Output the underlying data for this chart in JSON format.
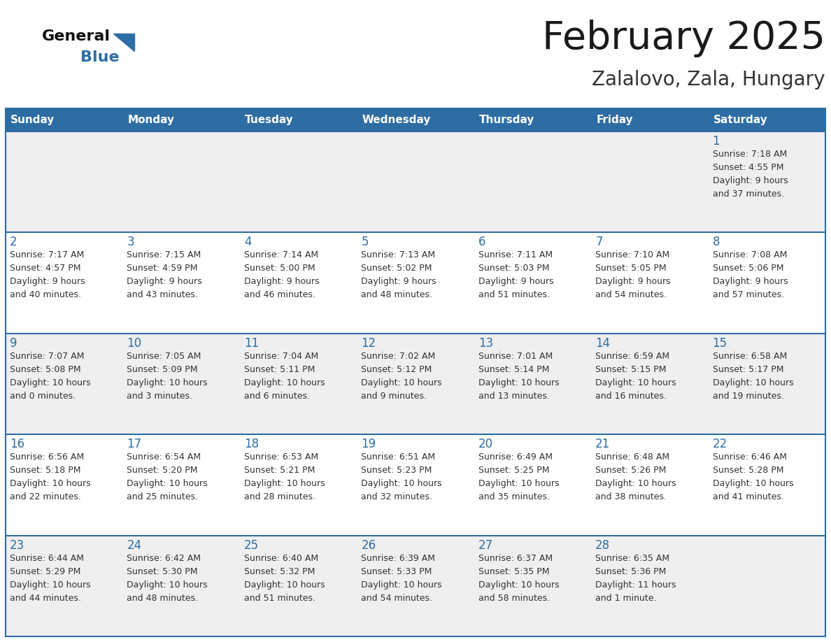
{
  "title": "February 2025",
  "subtitle": "Zalalovo, Zala, Hungary",
  "days_of_week": [
    "Sunday",
    "Monday",
    "Tuesday",
    "Wednesday",
    "Thursday",
    "Friday",
    "Saturday"
  ],
  "header_bg": "#2E6DA4",
  "header_text_color": "#FFFFFF",
  "cell_bg_light": "#EFEFEF",
  "cell_bg_white": "#FFFFFF",
  "cell_border_color": "#2E6DA4",
  "title_color": "#1a1a1a",
  "subtitle_color": "#333333",
  "day_number_color": "#2E6DA4",
  "cell_text_color": "#333333",
  "logo_general_color": "#111111",
  "logo_blue_color": "#2E6DA4",
  "weeks": [
    [
      {
        "day": null,
        "info": null
      },
      {
        "day": null,
        "info": null
      },
      {
        "day": null,
        "info": null
      },
      {
        "day": null,
        "info": null
      },
      {
        "day": null,
        "info": null
      },
      {
        "day": null,
        "info": null
      },
      {
        "day": 1,
        "info": "Sunrise: 7:18 AM\nSunset: 4:55 PM\nDaylight: 9 hours\nand 37 minutes."
      }
    ],
    [
      {
        "day": 2,
        "info": "Sunrise: 7:17 AM\nSunset: 4:57 PM\nDaylight: 9 hours\nand 40 minutes."
      },
      {
        "day": 3,
        "info": "Sunrise: 7:15 AM\nSunset: 4:59 PM\nDaylight: 9 hours\nand 43 minutes."
      },
      {
        "day": 4,
        "info": "Sunrise: 7:14 AM\nSunset: 5:00 PM\nDaylight: 9 hours\nand 46 minutes."
      },
      {
        "day": 5,
        "info": "Sunrise: 7:13 AM\nSunset: 5:02 PM\nDaylight: 9 hours\nand 48 minutes."
      },
      {
        "day": 6,
        "info": "Sunrise: 7:11 AM\nSunset: 5:03 PM\nDaylight: 9 hours\nand 51 minutes."
      },
      {
        "day": 7,
        "info": "Sunrise: 7:10 AM\nSunset: 5:05 PM\nDaylight: 9 hours\nand 54 minutes."
      },
      {
        "day": 8,
        "info": "Sunrise: 7:08 AM\nSunset: 5:06 PM\nDaylight: 9 hours\nand 57 minutes."
      }
    ],
    [
      {
        "day": 9,
        "info": "Sunrise: 7:07 AM\nSunset: 5:08 PM\nDaylight: 10 hours\nand 0 minutes."
      },
      {
        "day": 10,
        "info": "Sunrise: 7:05 AM\nSunset: 5:09 PM\nDaylight: 10 hours\nand 3 minutes."
      },
      {
        "day": 11,
        "info": "Sunrise: 7:04 AM\nSunset: 5:11 PM\nDaylight: 10 hours\nand 6 minutes."
      },
      {
        "day": 12,
        "info": "Sunrise: 7:02 AM\nSunset: 5:12 PM\nDaylight: 10 hours\nand 9 minutes."
      },
      {
        "day": 13,
        "info": "Sunrise: 7:01 AM\nSunset: 5:14 PM\nDaylight: 10 hours\nand 13 minutes."
      },
      {
        "day": 14,
        "info": "Sunrise: 6:59 AM\nSunset: 5:15 PM\nDaylight: 10 hours\nand 16 minutes."
      },
      {
        "day": 15,
        "info": "Sunrise: 6:58 AM\nSunset: 5:17 PM\nDaylight: 10 hours\nand 19 minutes."
      }
    ],
    [
      {
        "day": 16,
        "info": "Sunrise: 6:56 AM\nSunset: 5:18 PM\nDaylight: 10 hours\nand 22 minutes."
      },
      {
        "day": 17,
        "info": "Sunrise: 6:54 AM\nSunset: 5:20 PM\nDaylight: 10 hours\nand 25 minutes."
      },
      {
        "day": 18,
        "info": "Sunrise: 6:53 AM\nSunset: 5:21 PM\nDaylight: 10 hours\nand 28 minutes."
      },
      {
        "day": 19,
        "info": "Sunrise: 6:51 AM\nSunset: 5:23 PM\nDaylight: 10 hours\nand 32 minutes."
      },
      {
        "day": 20,
        "info": "Sunrise: 6:49 AM\nSunset: 5:25 PM\nDaylight: 10 hours\nand 35 minutes."
      },
      {
        "day": 21,
        "info": "Sunrise: 6:48 AM\nSunset: 5:26 PM\nDaylight: 10 hours\nand 38 minutes."
      },
      {
        "day": 22,
        "info": "Sunrise: 6:46 AM\nSunset: 5:28 PM\nDaylight: 10 hours\nand 41 minutes."
      }
    ],
    [
      {
        "day": 23,
        "info": "Sunrise: 6:44 AM\nSunset: 5:29 PM\nDaylight: 10 hours\nand 44 minutes."
      },
      {
        "day": 24,
        "info": "Sunrise: 6:42 AM\nSunset: 5:30 PM\nDaylight: 10 hours\nand 48 minutes."
      },
      {
        "day": 25,
        "info": "Sunrise: 6:40 AM\nSunset: 5:32 PM\nDaylight: 10 hours\nand 51 minutes."
      },
      {
        "day": 26,
        "info": "Sunrise: 6:39 AM\nSunset: 5:33 PM\nDaylight: 10 hours\nand 54 minutes."
      },
      {
        "day": 27,
        "info": "Sunrise: 6:37 AM\nSunset: 5:35 PM\nDaylight: 10 hours\nand 58 minutes."
      },
      {
        "day": 28,
        "info": "Sunrise: 6:35 AM\nSunset: 5:36 PM\nDaylight: 11 hours\nand 1 minute."
      },
      {
        "day": null,
        "info": null
      }
    ]
  ]
}
